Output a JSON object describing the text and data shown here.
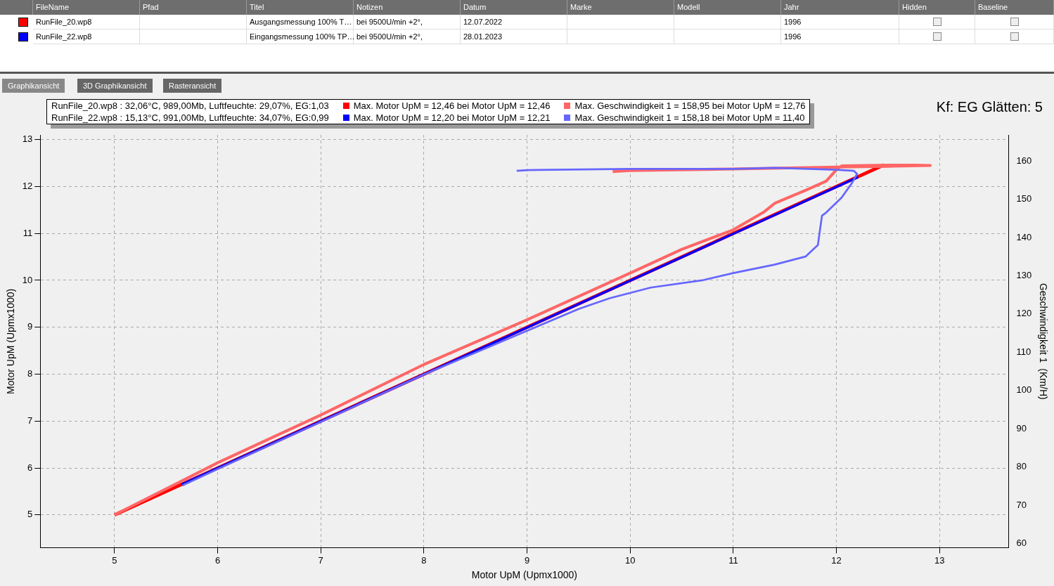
{
  "chart_data": {
    "type": "line",
    "xlabel": "Motor UpM (Upmx1000)",
    "ylabel": "Motor UpM (Upmx1000)",
    "y2label": "Geschwindigkeit 1  (Km/H)",
    "xlim": [
      4.28,
      13.67
    ],
    "xticks": [
      5,
      6,
      7,
      8,
      9,
      10,
      11,
      12,
      13
    ],
    "ylim": [
      4.3,
      13.1
    ],
    "yticks": [
      5,
      6,
      7,
      8,
      9,
      10,
      11,
      12,
      13
    ],
    "y2lim": [
      58.9,
      166.8
    ],
    "y2ticks": [
      60,
      70,
      80,
      90,
      100,
      110,
      120,
      130,
      140,
      150,
      160
    ],
    "grid": true,
    "legend": "top",
    "line_style": "solid",
    "series": [
      {
        "name": "Max. Motor UpM = 12,46 bei Motor UpM = 12,46",
        "color": "#ff0000",
        "x": [
          5,
          12.46
        ],
        "values": [
          5,
          12.46
        ]
      },
      {
        "name": "Max. Geschwindigkeit 1  = 158,95 bei Motor UpM = 12,76",
        "color": "#ff6666",
        "axis": "y2",
        "x": [
          5,
          6,
          7,
          8,
          9,
          10,
          10.5,
          11,
          11.3,
          11.4,
          11.7,
          11.9,
          12,
          12.05,
          12.5,
          12.76,
          12.91,
          12.5,
          12,
          11,
          10,
          9.83
        ],
        "values": [
          67.5,
          81.1,
          93.6,
          106.8,
          118.5,
          130.7,
          136.9,
          142,
          146.7,
          148.9,
          152.3,
          154.7,
          157.7,
          158.7,
          158.9,
          158.9,
          158.8,
          158.6,
          158.4,
          157.9,
          157.5,
          157.2
        ]
      },
      {
        "name": "Max. Motor UpM = 12,20 bei Motor UpM = 12,21",
        "color": "#0000ff",
        "x": [
          5.65,
          12.21
        ],
        "values": [
          5.65,
          12.2
        ]
      },
      {
        "name": "Max. Geschwindigkeit 1  = 158,18 bei Motor UpM = 11,40",
        "color": "#6666ff",
        "axis": "y2",
        "x": [
          5.66,
          6,
          7,
          8,
          9,
          9.5,
          9.8,
          10.2,
          10.7,
          11,
          11.4,
          11.7,
          11.82,
          11.86,
          11.9,
          12.05,
          12.15,
          12.2,
          12.17,
          12,
          11.4,
          11,
          10,
          9,
          8.9
        ],
        "values": [
          75.2,
          79.5,
          91.8,
          104.2,
          115.6,
          121.3,
          124.1,
          126.9,
          128.8,
          130.7,
          132.9,
          135,
          138,
          145.7,
          146.5,
          150.4,
          154.2,
          156.6,
          157.4,
          157.7,
          158.2,
          157.9,
          157.9,
          157.6,
          157.4
        ]
      }
    ],
    "annotations": [
      "FileName",
      "Pfad",
      "Titel",
      "Notizen",
      "Datum",
      "Marke",
      "Modell",
      "Jahr",
      "Hidden",
      "Baseline",
      "RunFile_20.wp8",
      "Ausgangsmessung 100% T…",
      "bei 9500U/min +2°,",
      "12.07.2022",
      "1996",
      "RunFile_22.wp8",
      "Eingangsmessung 100% TP…",
      "bei 9500U/min +2°,",
      "28.01.2023",
      "1996",
      "Graphikansicht",
      "3D Graphikansicht",
      "Rasteransicht",
      "RunFile_20.wp8   : 32,06°C, 989,00Mb, Luftfeuchte: 29,07%, EG:1,03",
      "RunFile_22.wp8   : 15,13°C, 991,00Mb, Luftfeuchte: 34,07%, EG:0,99",
      "Kf: EG Glätten: 5"
    ]
  }
}
